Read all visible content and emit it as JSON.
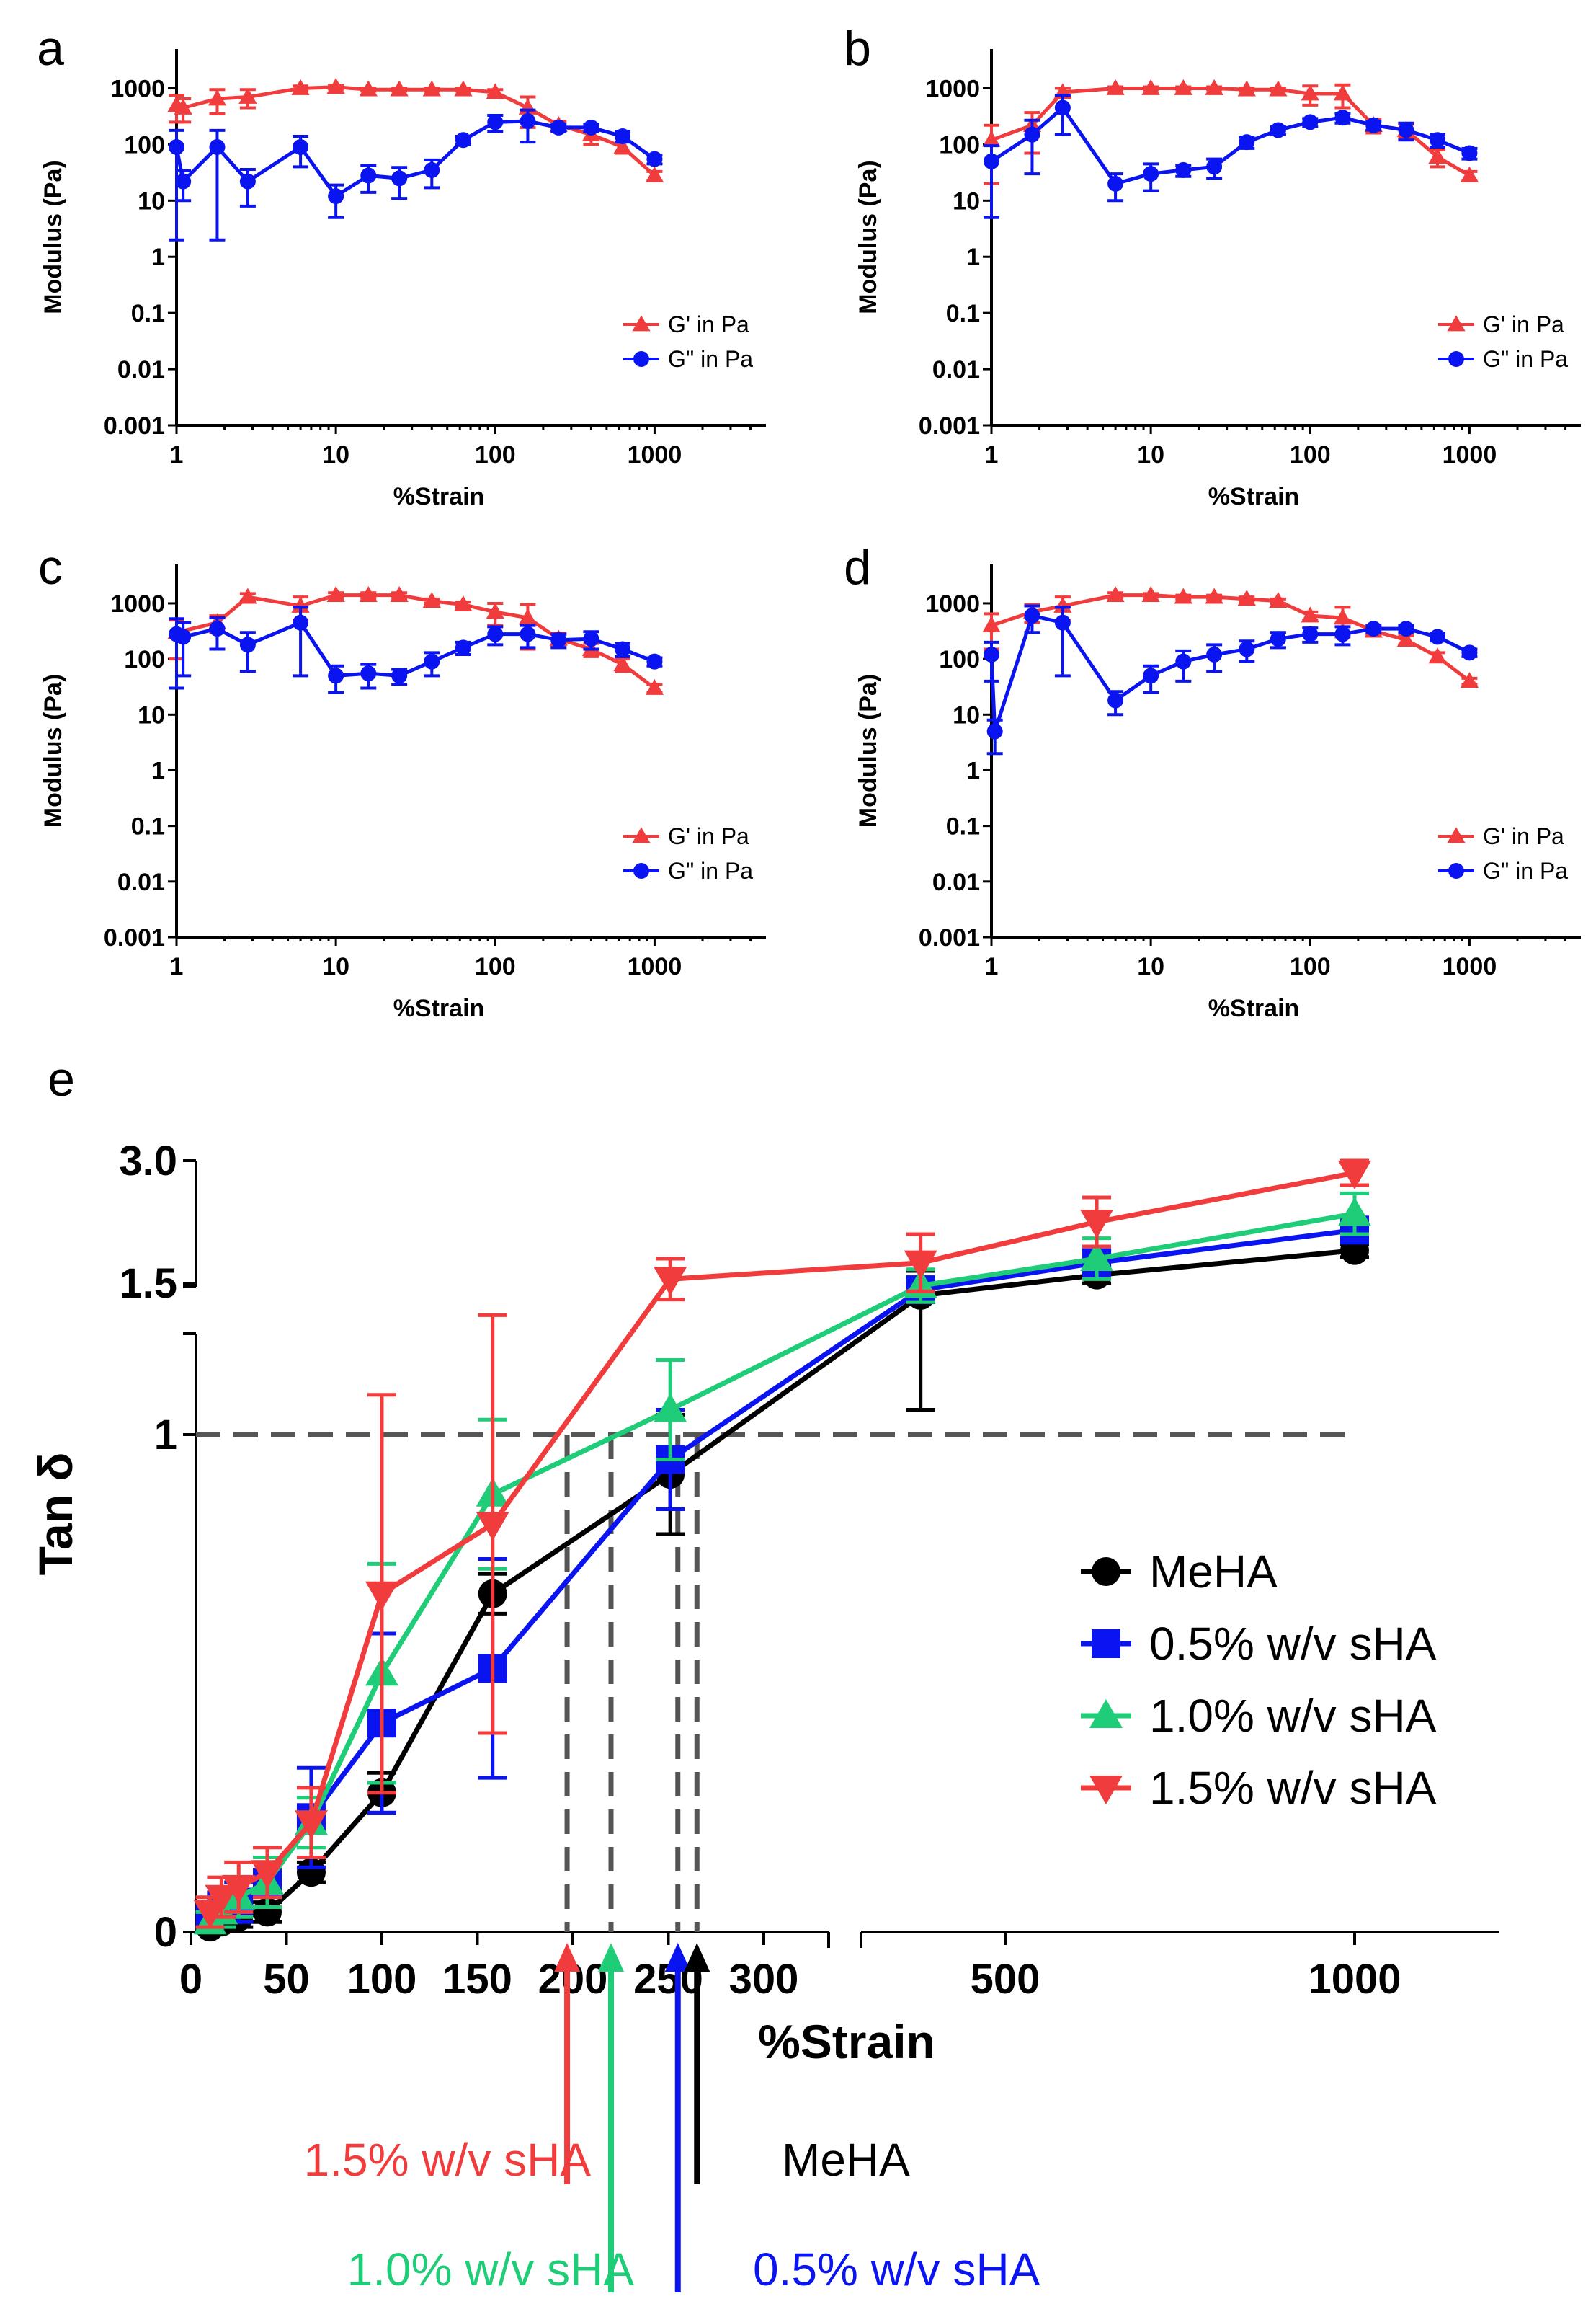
{
  "figure": {
    "panels_label": [
      "a",
      "b",
      "c",
      "d"
    ],
    "panel_e_label": "e"
  },
  "chart_data": [
    {
      "id": "a",
      "type": "line",
      "xscale": "log",
      "yscale": "log",
      "xlabel": "%Strain",
      "ylabel": "Modulus (Pa)",
      "xlim": [
        1,
        5000
      ],
      "ylim": [
        0.001,
        5000
      ],
      "xticks": [
        "1",
        "10",
        "100",
        "1000"
      ],
      "yticks": [
        "0.001",
        "0.01",
        "0.1",
        "1",
        "10",
        "100",
        "1000"
      ],
      "legend_position": "bottom-right",
      "series": [
        {
          "name": "G' in Pa",
          "color": "#f03c3c",
          "marker": "triangle-up",
          "x": [
            1,
            1.1,
            1.8,
            2.8,
            6,
            10,
            16,
            25,
            40,
            63,
            100,
            160,
            250,
            400,
            630,
            1000
          ],
          "values": [
            500,
            450,
            650,
            700,
            1000,
            1050,
            950,
            950,
            950,
            950,
            850,
            450,
            220,
            150,
            90,
            28
          ],
          "errors": [
            250,
            200,
            300,
            250,
            100,
            80,
            60,
            60,
            60,
            60,
            100,
            250,
            40,
            50,
            20,
            5
          ]
        },
        {
          "name": "G\" in Pa",
          "color": "#0a14f0",
          "marker": "circle",
          "x": [
            1,
            1.1,
            1.8,
            2.8,
            6,
            10,
            16,
            25,
            40,
            63,
            100,
            160,
            250,
            400,
            630,
            1000
          ],
          "values": [
            90,
            22,
            90,
            22,
            90,
            12,
            28,
            25,
            35,
            120,
            250,
            260,
            200,
            200,
            140,
            55
          ],
          "errors": [
            88,
            12,
            88,
            14,
            50,
            7,
            14,
            14,
            18,
            20,
            80,
            150,
            30,
            30,
            30,
            10
          ]
        }
      ]
    },
    {
      "id": "b",
      "type": "line",
      "xscale": "log",
      "yscale": "log",
      "xlabel": "%Strain",
      "ylabel": "Modulus (Pa)",
      "xlim": [
        1,
        5000
      ],
      "ylim": [
        0.001,
        5000
      ],
      "xticks": [
        "1",
        "10",
        "100",
        "1000"
      ],
      "yticks": [
        "0.001",
        "0.01",
        "0.1",
        "1",
        "10",
        "100",
        "1000"
      ],
      "legend_position": "bottom-right",
      "series": [
        {
          "name": "G' in Pa",
          "color": "#f03c3c",
          "marker": "triangle-up",
          "x": [
            1,
            1.8,
            2.8,
            6,
            10,
            16,
            25,
            40,
            63,
            100,
            160,
            250,
            400,
            630,
            1000
          ],
          "values": [
            120,
            220,
            850,
            1000,
            1000,
            1000,
            1000,
            950,
            950,
            800,
            800,
            220,
            180,
            60,
            28
          ],
          "errors": [
            100,
            150,
            150,
            60,
            60,
            60,
            60,
            60,
            60,
            300,
            350,
            60,
            50,
            20,
            5
          ]
        },
        {
          "name": "G\" in Pa",
          "color": "#0a14f0",
          "marker": "circle",
          "x": [
            1,
            1.8,
            2.8,
            6,
            10,
            16,
            25,
            40,
            63,
            100,
            160,
            250,
            400,
            630,
            1000
          ],
          "values": [
            50,
            150,
            450,
            20,
            30,
            35,
            40,
            110,
            180,
            250,
            300,
            220,
            180,
            120,
            70
          ],
          "errors": [
            45,
            120,
            300,
            10,
            15,
            8,
            15,
            25,
            30,
            40,
            60,
            40,
            60,
            30,
            15
          ]
        }
      ]
    },
    {
      "id": "c",
      "type": "line",
      "xscale": "log",
      "yscale": "log",
      "xlabel": "%Strain",
      "ylabel": "Modulus (Pa)",
      "xlim": [
        1,
        5000
      ],
      "ylim": [
        0.001,
        5000
      ],
      "xticks": [
        "1",
        "10",
        "100",
        "1000"
      ],
      "yticks": [
        "0.001",
        "0.01",
        "0.1",
        "1",
        "10",
        "100",
        "1000"
      ],
      "legend_position": "bottom-right",
      "series": [
        {
          "name": "G' in Pa",
          "color": "#f03c3c",
          "marker": "triangle-up",
          "x": [
            1,
            1.8,
            2.8,
            6,
            10,
            16,
            25,
            40,
            63,
            100,
            160,
            250,
            400,
            630,
            1000
          ],
          "values": [
            300,
            450,
            1300,
            900,
            1400,
            1400,
            1400,
            1100,
            950,
            700,
            550,
            230,
            150,
            80,
            30
          ],
          "errors": [
            200,
            150,
            200,
            400,
            150,
            150,
            150,
            100,
            100,
            300,
            400,
            60,
            40,
            20,
            5
          ]
        },
        {
          "name": "G\" in Pa",
          "color": "#0a14f0",
          "marker": "circle",
          "x": [
            1,
            1.1,
            1.8,
            2.8,
            6,
            10,
            16,
            25,
            40,
            63,
            100,
            160,
            250,
            400,
            630,
            1000
          ],
          "values": [
            280,
            250,
            350,
            180,
            450,
            50,
            55,
            50,
            90,
            160,
            280,
            280,
            220,
            230,
            150,
            90
          ],
          "errors": [
            250,
            200,
            200,
            120,
            400,
            25,
            25,
            15,
            40,
            40,
            100,
            120,
            60,
            80,
            40,
            15
          ]
        }
      ]
    },
    {
      "id": "d",
      "type": "line",
      "xscale": "log",
      "yscale": "log",
      "xlabel": "%Strain",
      "ylabel": "Modulus (Pa)",
      "xlim": [
        1,
        5000
      ],
      "ylim": [
        0.001,
        5000
      ],
      "xticks": [
        "1",
        "10",
        "100",
        "1000"
      ],
      "yticks": [
        "0.001",
        "0.01",
        "0.1",
        "1",
        "10",
        "100",
        "1000"
      ],
      "legend_position": "bottom-right",
      "series": [
        {
          "name": "G' in Pa",
          "color": "#f03c3c",
          "marker": "triangle-up",
          "x": [
            1,
            1.8,
            2.8,
            6,
            10,
            16,
            25,
            40,
            63,
            100,
            160,
            250,
            400,
            630,
            1000
          ],
          "values": [
            400,
            700,
            900,
            1400,
            1400,
            1300,
            1300,
            1200,
            1100,
            600,
            550,
            320,
            220,
            110,
            40
          ],
          "errors": [
            250,
            250,
            400,
            150,
            100,
            100,
            100,
            100,
            100,
            100,
            300,
            50,
            40,
            20,
            5
          ]
        },
        {
          "name": "G\" in Pa",
          "color": "#0a14f0",
          "marker": "circle",
          "x": [
            1,
            1.05,
            1.8,
            2.8,
            6,
            10,
            16,
            25,
            40,
            63,
            100,
            160,
            250,
            400,
            630,
            1000
          ],
          "values": [
            120,
            5,
            600,
            450,
            18,
            50,
            90,
            120,
            150,
            230,
            280,
            280,
            350,
            350,
            250,
            130
          ],
          "errors": [
            80,
            3,
            300,
            400,
            8,
            25,
            50,
            60,
            60,
            70,
            80,
            100,
            50,
            50,
            40,
            20
          ]
        }
      ]
    },
    {
      "id": "e",
      "type": "line",
      "xlabel": "%Strain",
      "ylabel": "Tan δ",
      "x_segments": [
        {
          "range": [
            0,
            320
          ]
        },
        {
          "range": [
            320,
            1200
          ]
        }
      ],
      "xticks": [
        "0",
        "50",
        "100",
        "150",
        "200",
        "250",
        "300",
        "500",
        "1000"
      ],
      "y_segments": [
        {
          "range": [
            0,
            1.25
          ],
          "ticks": [
            "0",
            "1"
          ]
        },
        {
          "range": [
            1.4,
            3.0
          ],
          "ticks": [
            "1.5",
            "3.0"
          ]
        }
      ],
      "reference_line": {
        "y": 1,
        "style": "dashed"
      },
      "crossovers": [
        {
          "label": "1.5% w/v sHA",
          "x": 197,
          "color": "#f03c3c"
        },
        {
          "label": "1.0% w/v sHA",
          "x": 220,
          "color": "#1fcd78"
        },
        {
          "label": "0.5% w/v sHA",
          "x": 255,
          "color": "#0a14f0"
        },
        {
          "label": "MeHA",
          "x": 265,
          "color": "#000000"
        }
      ],
      "legend_position": "right",
      "series": [
        {
          "name": "MeHA",
          "color": "#000000",
          "marker": "circle",
          "x": [
            10,
            16,
            25,
            40,
            63,
            100,
            158,
            251,
            398,
            631,
            1000
          ],
          "values": [
            0.01,
            0.02,
            0.03,
            0.04,
            0.12,
            0.28,
            0.68,
            0.92,
            1.35,
            1.6,
            1.9
          ],
          "errors": [
            0.01,
            0.01,
            0.02,
            0.02,
            0.02,
            0.04,
            0.04,
            0.12,
            0.3,
            0.1,
            0.08
          ]
        },
        {
          "name": "0.5% w/v sHA",
          "color": "#0a14f0",
          "marker": "square",
          "x": [
            10,
            16,
            25,
            40,
            63,
            100,
            158,
            251,
            398,
            631,
            1000
          ],
          "values": [
            0.03,
            0.05,
            0.06,
            0.1,
            0.23,
            0.42,
            0.53,
            0.95,
            1.42,
            1.75,
            2.15
          ],
          "errors": [
            0.02,
            0.03,
            0.04,
            0.05,
            0.1,
            0.18,
            0.22,
            0.1,
            0.1,
            0.15,
            0.12
          ]
        },
        {
          "name": "1.0% w/v sHA",
          "color": "#1fcd78",
          "marker": "triangle-up",
          "x": [
            10,
            16,
            25,
            40,
            63,
            100,
            158,
            251,
            398,
            631,
            1000
          ],
          "values": [
            0.02,
            0.04,
            0.07,
            0.1,
            0.22,
            0.52,
            0.88,
            1.05,
            1.47,
            1.8,
            2.35
          ],
          "errors": [
            0.02,
            0.03,
            0.04,
            0.05,
            0.05,
            0.22,
            0.15,
            0.1,
            0.2,
            0.25,
            0.25
          ]
        },
        {
          "name": "1.5% w/v sHA",
          "color": "#f03c3c",
          "marker": "triangle-down",
          "x": [
            10,
            16,
            25,
            40,
            63,
            100,
            158,
            251,
            398,
            631,
            1000
          ],
          "values": [
            0.04,
            0.07,
            0.09,
            0.12,
            0.22,
            0.68,
            0.82,
            1.55,
            1.75,
            2.25,
            2.85
          ],
          "errors": [
            0.03,
            0.04,
            0.05,
            0.05,
            0.07,
            0.4,
            0.42,
            0.25,
            0.35,
            0.3,
            0.15
          ]
        }
      ]
    }
  ]
}
